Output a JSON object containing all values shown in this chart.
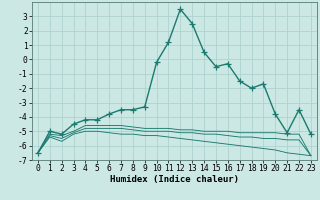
{
  "title": "",
  "xlabel": "Humidex (Indice chaleur)",
  "background_color": "#cce8e5",
  "grid_color": "#aacfcc",
  "line_color": "#1a7a6e",
  "x": [
    0,
    1,
    2,
    3,
    4,
    5,
    6,
    7,
    8,
    9,
    10,
    11,
    12,
    13,
    14,
    15,
    16,
    17,
    18,
    19,
    20,
    21,
    22,
    23
  ],
  "y_main": [
    -6.5,
    -5.0,
    -5.2,
    -4.5,
    -4.2,
    -4.2,
    -3.8,
    -3.5,
    -3.5,
    -3.3,
    -0.2,
    1.2,
    3.5,
    2.5,
    0.5,
    -0.5,
    -0.3,
    -1.5,
    -2.0,
    -1.7,
    -3.8,
    -5.1,
    -3.5,
    -5.2
  ],
  "y_line2": [
    -6.5,
    -5.2,
    -5.3,
    -5.0,
    -4.6,
    -4.6,
    -4.6,
    -4.6,
    -4.7,
    -4.8,
    -4.8,
    -4.8,
    -4.9,
    -4.9,
    -5.0,
    -5.0,
    -5.0,
    -5.1,
    -5.1,
    -5.1,
    -5.1,
    -5.2,
    -5.2,
    -6.7
  ],
  "y_line3": [
    -6.5,
    -5.3,
    -5.5,
    -5.1,
    -4.8,
    -4.8,
    -4.8,
    -4.8,
    -4.9,
    -5.0,
    -5.0,
    -5.0,
    -5.1,
    -5.1,
    -5.2,
    -5.2,
    -5.3,
    -5.4,
    -5.4,
    -5.5,
    -5.5,
    -5.6,
    -5.6,
    -6.7
  ],
  "y_line4": [
    -6.5,
    -5.4,
    -5.7,
    -5.2,
    -5.0,
    -5.0,
    -5.1,
    -5.2,
    -5.2,
    -5.3,
    -5.3,
    -5.4,
    -5.5,
    -5.6,
    -5.7,
    -5.8,
    -5.9,
    -6.0,
    -6.1,
    -6.2,
    -6.3,
    -6.5,
    -6.6,
    -6.7
  ],
  "ylim": [
    -7,
    4
  ],
  "xlim": [
    -0.5,
    23.5
  ],
  "yticks": [
    -7,
    -6,
    -5,
    -4,
    -3,
    -2,
    -1,
    0,
    1,
    2,
    3
  ],
  "xticks": [
    0,
    1,
    2,
    3,
    4,
    5,
    6,
    7,
    8,
    9,
    10,
    11,
    12,
    13,
    14,
    15,
    16,
    17,
    18,
    19,
    20,
    21,
    22,
    23
  ],
  "markersize": 4,
  "linewidth": 1.0,
  "axis_fontsize": 6.5,
  "tick_fontsize": 5.8
}
